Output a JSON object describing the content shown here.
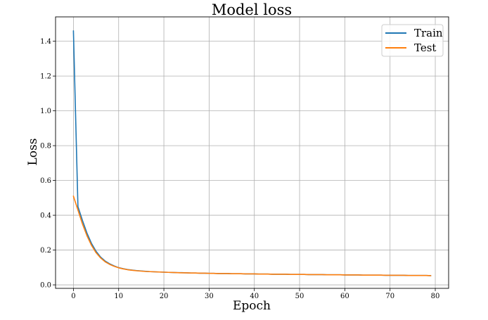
{
  "chart_data": {
    "type": "line",
    "title": "Model loss",
    "xlabel": "Epoch",
    "ylabel": "Loss",
    "xlim": [
      -3.95,
      82.95
    ],
    "ylim": [
      -0.02,
      1.54
    ],
    "xticks": [
      0,
      10,
      20,
      30,
      40,
      50,
      60,
      70,
      80
    ],
    "yticks": [
      0.0,
      0.2,
      0.4,
      0.6,
      0.8,
      1.0,
      1.2,
      1.4
    ],
    "xtick_labels": [
      "0",
      "10",
      "20",
      "30",
      "40",
      "50",
      "60",
      "70",
      "80"
    ],
    "ytick_labels": [
      "0.0",
      "0.2",
      "0.4",
      "0.6",
      "0.8",
      "1.0",
      "1.2",
      "1.4"
    ],
    "grid": true,
    "legend_position": "top-right",
    "x": [
      0,
      1,
      2,
      3,
      4,
      5,
      6,
      7,
      8,
      9,
      10,
      11,
      12,
      13,
      14,
      15,
      16,
      17,
      18,
      19,
      20,
      21,
      22,
      23,
      24,
      25,
      26,
      27,
      28,
      29,
      30,
      31,
      32,
      33,
      34,
      35,
      36,
      37,
      38,
      39,
      40,
      41,
      42,
      43,
      44,
      45,
      46,
      47,
      48,
      49,
      50,
      51,
      52,
      53,
      54,
      55,
      56,
      57,
      58,
      59,
      60,
      61,
      62,
      63,
      64,
      65,
      66,
      67,
      68,
      69,
      70,
      71,
      72,
      73,
      74,
      75,
      76,
      77,
      78,
      79
    ],
    "series": [
      {
        "name": "Train",
        "color": "#1f77b4",
        "values": [
          1.46,
          0.45,
          0.37,
          0.297,
          0.238,
          0.193,
          0.16,
          0.137,
          0.121,
          0.109,
          0.099,
          0.093,
          0.088,
          0.085,
          0.082,
          0.08,
          0.078,
          0.076,
          0.075,
          0.074,
          0.073,
          0.072,
          0.071,
          0.07,
          0.07,
          0.069,
          0.068,
          0.068,
          0.067,
          0.067,
          0.066,
          0.066,
          0.065,
          0.065,
          0.065,
          0.064,
          0.064,
          0.064,
          0.063,
          0.063,
          0.063,
          0.062,
          0.062,
          0.062,
          0.061,
          0.061,
          0.061,
          0.061,
          0.06,
          0.06,
          0.06,
          0.06,
          0.059,
          0.059,
          0.059,
          0.059,
          0.058,
          0.058,
          0.058,
          0.058,
          0.057,
          0.057,
          0.057,
          0.057,
          0.056,
          0.056,
          0.056,
          0.056,
          0.056,
          0.055,
          0.055,
          0.055,
          0.055,
          0.055,
          0.054,
          0.054,
          0.054,
          0.054,
          0.054,
          0.053
        ]
      },
      {
        "name": "Test",
        "color": "#ff7f0e",
        "values": [
          0.51,
          0.43,
          0.35,
          0.282,
          0.227,
          0.185,
          0.155,
          0.133,
          0.118,
          0.107,
          0.098,
          0.092,
          0.087,
          0.084,
          0.081,
          0.079,
          0.077,
          0.076,
          0.075,
          0.074,
          0.073,
          0.072,
          0.071,
          0.07,
          0.069,
          0.069,
          0.068,
          0.068,
          0.067,
          0.067,
          0.066,
          0.066,
          0.065,
          0.065,
          0.065,
          0.064,
          0.064,
          0.064,
          0.063,
          0.063,
          0.063,
          0.062,
          0.062,
          0.062,
          0.061,
          0.061,
          0.061,
          0.061,
          0.06,
          0.06,
          0.06,
          0.06,
          0.059,
          0.059,
          0.059,
          0.059,
          0.058,
          0.058,
          0.058,
          0.058,
          0.057,
          0.057,
          0.057,
          0.057,
          0.056,
          0.056,
          0.056,
          0.056,
          0.056,
          0.055,
          0.055,
          0.055,
          0.055,
          0.055,
          0.054,
          0.054,
          0.054,
          0.054,
          0.054,
          0.053
        ]
      }
    ]
  }
}
